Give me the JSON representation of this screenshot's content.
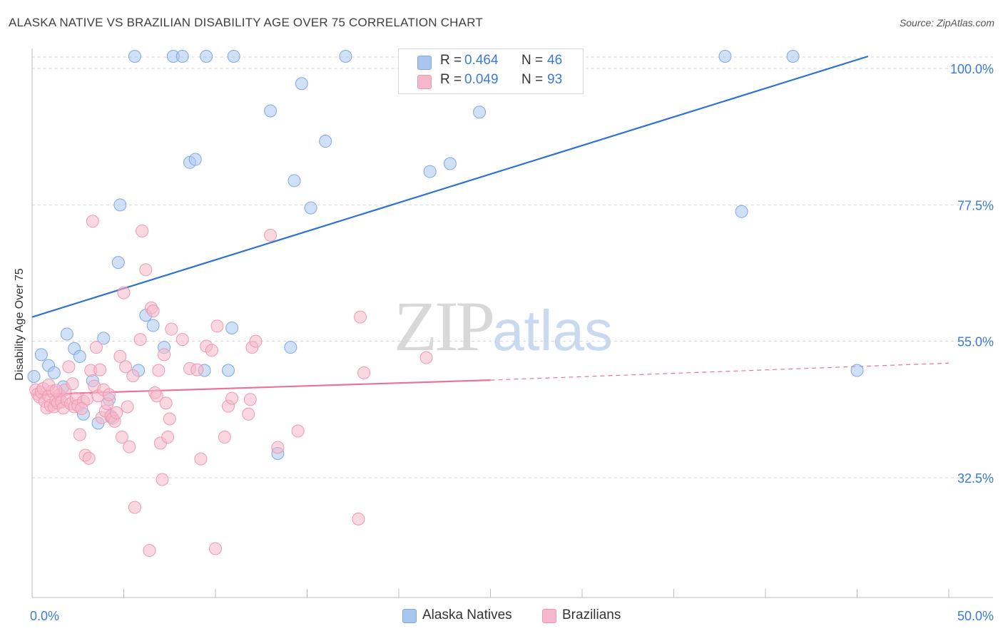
{
  "header": {
    "title": "ALASKA NATIVE VS BRAZILIAN DISABILITY AGE OVER 75 CORRELATION CHART",
    "source": "Source: ZipAtlas.com"
  },
  "watermark": {
    "zip": "ZIP",
    "atlas": "atlas"
  },
  "legend": {
    "blue": {
      "r_label": "R =",
      "r_value": "0.464",
      "n_label": "N =",
      "n_value": "46"
    },
    "pink": {
      "r_label": "R =",
      "r_value": "0.049",
      "n_label": "N =",
      "n_value": "93"
    }
  },
  "bottom_legend": {
    "blue_label": "Alaska Natives",
    "pink_label": "Brazilians"
  },
  "colors": {
    "blue_fill": "#a9c6ee",
    "blue_stroke": "#7fa8e0",
    "blue_line": "#2f72d0",
    "pink_fill": "#f5b8cb",
    "pink_stroke": "#ee98b3",
    "pink_line": "#e8739a",
    "tick_label": "#3a7bd5",
    "grid": "#d6d6d6"
  },
  "chart_data": {
    "type": "scatter",
    "title": "ALASKA NATIVE VS BRAZILIAN DISABILITY AGE OVER 75 CORRELATION CHART",
    "xlabel": "",
    "ylabel": "Disability Age Over 75",
    "xlim": [
      0,
      50
    ],
    "ylim": [
      11.0,
      102.0
    ],
    "x_tick_labels": [
      "0.0%",
      "50.0%"
    ],
    "y_ticks": [
      32.5,
      55.0,
      77.5,
      100.0
    ],
    "y_tick_labels": [
      "32.5%",
      "55.0%",
      "77.5%",
      "100.0%"
    ],
    "grid": true,
    "series": [
      {
        "name": "Alaska Natives",
        "color": "blue",
        "trend": {
          "x0": 0.0,
          "y0": 59.0,
          "x1": 45.6,
          "y1": 102.0,
          "dashed_to": null
        },
        "points": [
          [
            0.1,
            49.2
          ],
          [
            0.5,
            52.8
          ],
          [
            0.9,
            51.0
          ],
          [
            1.2,
            49.8
          ],
          [
            1.7,
            47.5
          ],
          [
            1.9,
            56.2
          ],
          [
            2.3,
            53.8
          ],
          [
            2.6,
            52.5
          ],
          [
            2.8,
            43.0
          ],
          [
            3.3,
            48.5
          ],
          [
            3.6,
            41.5
          ],
          [
            3.9,
            55.5
          ],
          [
            4.2,
            45.4
          ],
          [
            4.3,
            42.5
          ],
          [
            4.7,
            68.0
          ],
          [
            4.8,
            77.5
          ],
          [
            5.6,
            102.0
          ],
          [
            5.8,
            50.2
          ],
          [
            6.2,
            59.3
          ],
          [
            6.6,
            57.6
          ],
          [
            7.2,
            54.0
          ],
          [
            7.7,
            102.0
          ],
          [
            8.2,
            102.0
          ],
          [
            8.6,
            84.5
          ],
          [
            8.9,
            85.0
          ],
          [
            9.5,
            102.0
          ],
          [
            9.4,
            50.2
          ],
          [
            10.7,
            50.2
          ],
          [
            10.9,
            57.2
          ],
          [
            11.0,
            102.0
          ],
          [
            13.0,
            93.0
          ],
          [
            13.4,
            36.5
          ],
          [
            14.1,
            54.0
          ],
          [
            14.3,
            81.5
          ],
          [
            14.7,
            97.5
          ],
          [
            15.2,
            77.0
          ],
          [
            17.1,
            102.0
          ],
          [
            20.4,
            102.0
          ],
          [
            21.7,
            83.0
          ],
          [
            22.8,
            84.3
          ],
          [
            24.4,
            92.8
          ],
          [
            37.8,
            102.0
          ],
          [
            38.7,
            76.4
          ],
          [
            41.5,
            102.0
          ],
          [
            45.0,
            50.2
          ],
          [
            16.0,
            88.0
          ]
        ]
      },
      {
        "name": "Brazilians",
        "color": "pink",
        "trend": {
          "x0": 0.0,
          "y0": 46.2,
          "x1": 25.0,
          "y1": 48.6,
          "dashed_to": [
            50.0,
            51.4
          ]
        },
        "points": [
          [
            0.2,
            47.0
          ],
          [
            0.3,
            46.3
          ],
          [
            0.4,
            45.8
          ],
          [
            0.5,
            46.6
          ],
          [
            0.6,
            47.2
          ],
          [
            0.7,
            45.1
          ],
          [
            0.8,
            44.0
          ],
          [
            0.9,
            46.0
          ],
          [
            1.0,
            44.4
          ],
          [
            1.1,
            46.8
          ],
          [
            1.2,
            44.2
          ],
          [
            1.3,
            45.2
          ],
          [
            1.4,
            44.8
          ],
          [
            1.5,
            46.2
          ],
          [
            1.6,
            45.0
          ],
          [
            1.7,
            44.0
          ],
          [
            1.8,
            47.0
          ],
          [
            1.9,
            45.3
          ],
          [
            2.0,
            50.8
          ],
          [
            2.1,
            44.7
          ],
          [
            2.2,
            48.0
          ],
          [
            2.3,
            44.2
          ],
          [
            2.4,
            45.6
          ],
          [
            2.5,
            44.4
          ],
          [
            2.6,
            39.6
          ],
          [
            2.8,
            45.1
          ],
          [
            2.9,
            36.2
          ],
          [
            3.0,
            45.5
          ],
          [
            3.1,
            35.7
          ],
          [
            3.2,
            50.2
          ],
          [
            3.3,
            74.8
          ],
          [
            3.4,
            47.6
          ],
          [
            3.5,
            54.0
          ],
          [
            3.6,
            46.0
          ],
          [
            3.7,
            50.3
          ],
          [
            3.8,
            42.4
          ],
          [
            3.9,
            47.0
          ],
          [
            4.0,
            43.5
          ],
          [
            4.1,
            44.7
          ],
          [
            4.2,
            46.2
          ],
          [
            4.3,
            42.7
          ],
          [
            4.4,
            42.3
          ],
          [
            4.5,
            41.8
          ],
          [
            4.6,
            43.2
          ],
          [
            4.8,
            52.5
          ],
          [
            4.9,
            39.2
          ],
          [
            5.0,
            63.0
          ],
          [
            5.1,
            50.8
          ],
          [
            5.2,
            44.2
          ],
          [
            5.3,
            37.6
          ],
          [
            5.5,
            49.3
          ],
          [
            5.6,
            27.6
          ],
          [
            5.9,
            55.3
          ],
          [
            6.0,
            73.2
          ],
          [
            6.2,
            66.8
          ],
          [
            6.4,
            20.5
          ],
          [
            6.5,
            60.5
          ],
          [
            6.6,
            60.0
          ],
          [
            6.7,
            46.5
          ],
          [
            6.8,
            46.0
          ],
          [
            7.0,
            38.2
          ],
          [
            7.1,
            32.2
          ],
          [
            7.2,
            52.8
          ],
          [
            7.3,
            44.8
          ],
          [
            7.4,
            39.2
          ],
          [
            7.5,
            42.2
          ],
          [
            7.6,
            57.0
          ],
          [
            8.2,
            55.3
          ],
          [
            8.6,
            50.5
          ],
          [
            9.0,
            50.3
          ],
          [
            9.2,
            35.6
          ],
          [
            9.5,
            54.2
          ],
          [
            9.8,
            53.5
          ],
          [
            10.0,
            20.8
          ],
          [
            10.1,
            57.5
          ],
          [
            10.5,
            39.2
          ],
          [
            10.7,
            44.3
          ],
          [
            10.9,
            45.6
          ],
          [
            11.8,
            43.0
          ],
          [
            11.9,
            45.4
          ],
          [
            12.0,
            54.0
          ],
          [
            12.2,
            55.0
          ],
          [
            13.0,
            72.5
          ],
          [
            13.4,
            37.5
          ],
          [
            14.5,
            40.2
          ],
          [
            17.8,
            25.7
          ],
          [
            17.9,
            59.0
          ],
          [
            18.1,
            49.8
          ],
          [
            21.5,
            52.3
          ],
          [
            0.9,
            47.8
          ],
          [
            1.3,
            46.9
          ],
          [
            2.7,
            43.9
          ],
          [
            6.9,
            50.2
          ]
        ]
      }
    ]
  }
}
